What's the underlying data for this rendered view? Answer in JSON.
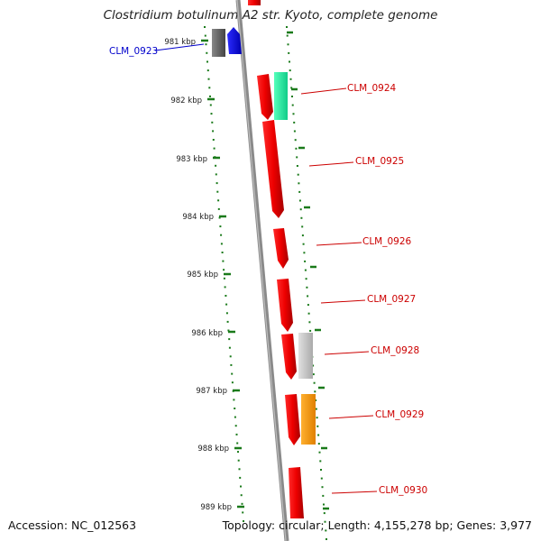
{
  "title": "Clostridium botulinum A2 str. Kyoto, complete genome",
  "footer": {
    "accession": "Accession: NC_012563",
    "summary": "Topology: circular; Length: 4,155,278 bp; Genes: 3,977"
  },
  "ticks": [
    "981 kbp",
    "982 kbp",
    "983 kbp",
    "984 kbp",
    "985 kbp",
    "986 kbp",
    "987 kbp",
    "988 kbp",
    "989 kbp"
  ],
  "genes": [
    {
      "label": "CLM_0923",
      "color": "#0000cc"
    },
    {
      "label": "CLM_0924",
      "color": "#cc0000"
    },
    {
      "label": "CLM_0925",
      "color": "#cc0000"
    },
    {
      "label": "CLM_0926",
      "color": "#cc0000"
    },
    {
      "label": "CLM_0927",
      "color": "#cc0000"
    },
    {
      "label": "CLM_0928",
      "color": "#cc0000"
    },
    {
      "label": "CLM_0929",
      "color": "#cc0000"
    },
    {
      "label": "CLM_0930",
      "color": "#cc0000"
    }
  ],
  "colors": {
    "tick": "#1a7a1a",
    "backbone": "#888888",
    "forward_cds": "#ee0000",
    "reverse_grey": "#666666",
    "reverse_blue": "#0000ee",
    "feature_green": "#22ee99",
    "feature_lightgrey": "#c8c8c8",
    "feature_orange": "#ff9900"
  }
}
